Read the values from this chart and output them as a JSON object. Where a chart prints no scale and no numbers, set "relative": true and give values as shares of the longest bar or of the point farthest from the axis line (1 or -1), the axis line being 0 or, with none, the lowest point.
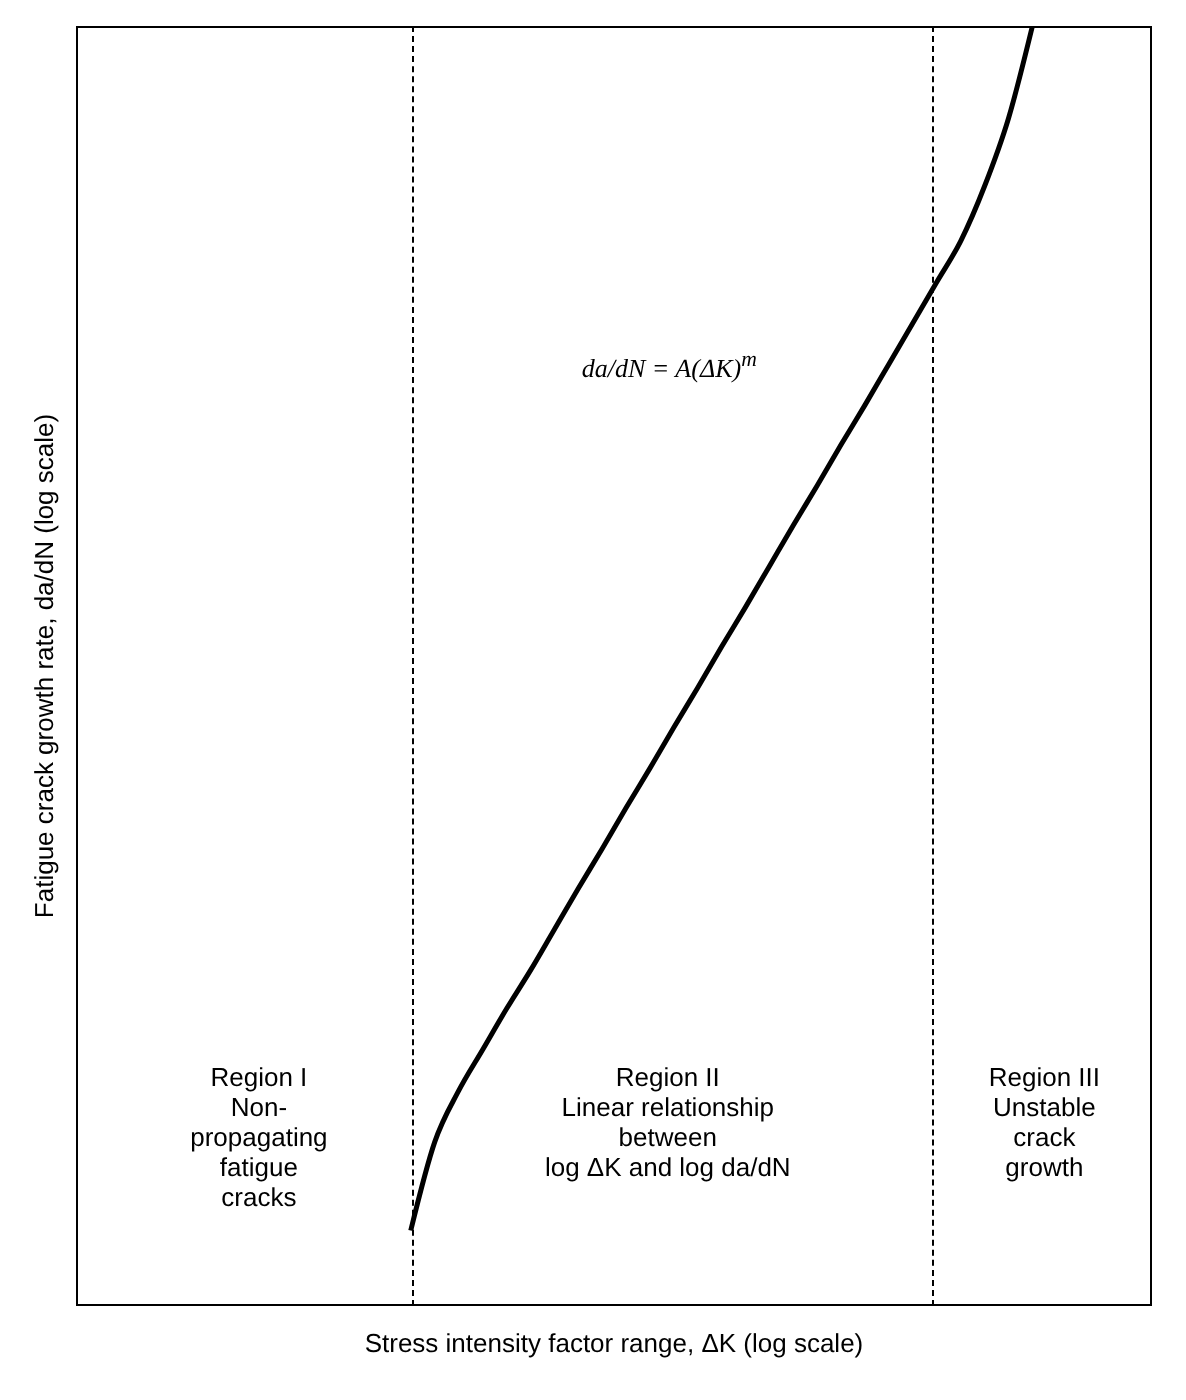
{
  "chart_data": {
    "type": "line",
    "relative": true,
    "xlabel": "Stress intensity factor range, ΔK (log scale)",
    "ylabel": "Fatigue crack growth rate, da/dN (log scale)",
    "categories": [
      null,
      null,
      null,
      null,
      null,
      null,
      null,
      null,
      null,
      null,
      null,
      null,
      null,
      null,
      null,
      null,
      null,
      null,
      null,
      null,
      null,
      null,
      null,
      null,
      null,
      null,
      null,
      null,
      null,
      null,
      null,
      null,
      null,
      null,
      null,
      null,
      null,
      null,
      null,
      null,
      null,
      null,
      null,
      null,
      null,
      null
    ],
    "series": [
      {
        "color": "#000000",
        "values": [
          null,
          null,
          null,
          null,
          null,
          null,
          null,
          null,
          null,
          null,
          null,
          null,
          null,
          null,
          0.059,
          0.128,
          0.168,
          0.2,
          0.232,
          0.262,
          0.294,
          0.326,
          0.357,
          0.389,
          0.42,
          0.452,
          0.483,
          0.515,
          0.546,
          0.578,
          0.61,
          0.641,
          0.673,
          0.704,
          0.736,
          0.768,
          0.8,
          0.832,
          0.875,
          0.928,
          1.0,
          null,
          null,
          null,
          null,
          null
        ]
      }
    ],
    "annotations": [
      "da/dN = A(ΔK)$^{m}$",
      "Region I\nNon-\npropagating\nfatigue\ncracks",
      "Region II\nLinear relationship\nbetween\nlog ΔK and log da/dN",
      "Region III\nUnstable\ncrack\ngrowth"
    ],
    "marker": "none",
    "line_style": "solid"
  }
}
